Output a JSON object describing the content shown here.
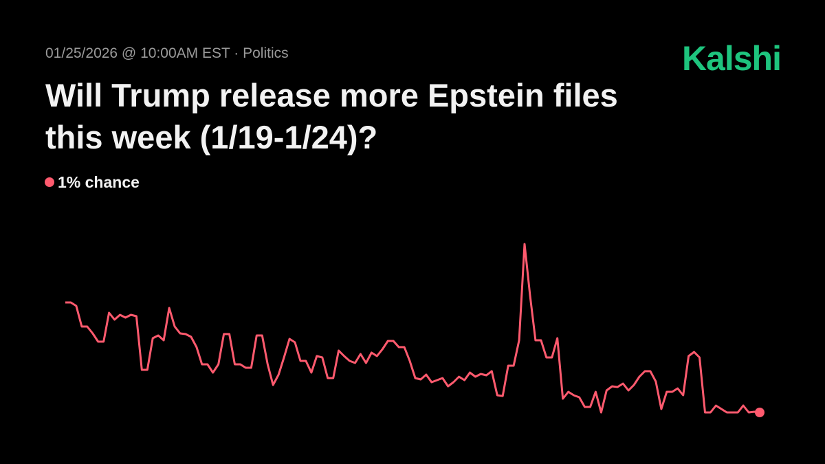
{
  "chart_data": {
    "type": "line",
    "meta": "01/25/2026 @ 10:00AM EST · Politics",
    "brand": "Kalshi",
    "title": "Will Trump release more Epstein files this week (1/19-1/24)?",
    "current_label": "1% chance",
    "ylim": [
      0,
      26
    ],
    "series": [
      {
        "color": "#ff5a6e",
        "values": [
          17,
          17,
          16.5,
          13.5,
          13.5,
          12.5,
          11.3,
          11.3,
          15.5,
          14.5,
          15.2,
          14.8,
          15.2,
          15,
          7.2,
          7.2,
          11.8,
          12.2,
          11.5,
          16.2,
          13.5,
          12.5,
          12.4,
          12,
          10.5,
          8,
          8,
          6.8,
          8,
          12.4,
          12.4,
          8,
          8,
          7.5,
          7.5,
          12.2,
          12.2,
          8,
          5,
          6.5,
          9,
          11.7,
          11.2,
          8.5,
          8.5,
          6.8,
          9.2,
          9,
          6,
          6,
          10,
          9.2,
          8.5,
          8.2,
          9.5,
          8.2,
          9.7,
          9.2,
          10.2,
          11.4,
          11.4,
          10.5,
          10.5,
          8.5,
          6,
          5.8,
          6.5,
          5.4,
          5.7,
          6,
          4.8,
          5.4,
          6.2,
          5.7,
          6.8,
          6.2,
          6.6,
          6.4,
          7,
          3.5,
          3.4,
          7.8,
          7.8,
          11.5,
          25.5,
          18,
          11.5,
          11.5,
          9,
          9,
          11.8,
          3,
          4,
          3.5,
          3.2,
          1.8,
          1.8,
          4,
          1,
          4.2,
          4.8,
          4.7,
          5.2,
          4.2,
          5,
          6.2,
          7,
          7,
          5.5,
          1.5,
          4,
          4,
          4.5,
          3.5,
          9.2,
          9.8,
          9,
          1,
          1,
          2,
          1.5,
          1,
          1,
          1,
          2,
          1,
          1.1,
          1
        ]
      }
    ]
  }
}
